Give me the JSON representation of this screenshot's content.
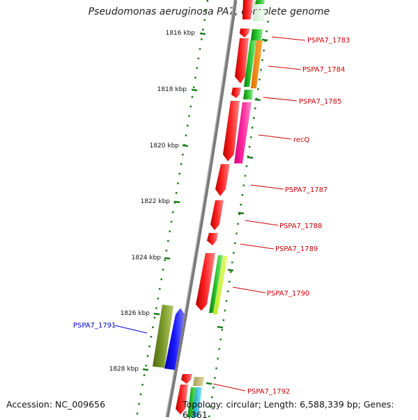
{
  "title": "Pseudomonas aeruginosa PA7, complete genome",
  "footer": {
    "accession": "Accession: NC_009656",
    "summary": "Topology: circular; Length: 6,588,339 bp; Genes: 6,361"
  },
  "scale_labels": [
    "1816 kbp",
    "1818 kbp",
    "1820 kbp",
    "1822 kbp",
    "1824 kbp",
    "1826 kbp",
    "1828 kbp"
  ],
  "gene_labels": [
    {
      "text": "PSPA7_1783",
      "color": "#cc0000"
    },
    {
      "text": "PSPA7_1784",
      "color": "#cc0000"
    },
    {
      "text": "PSPA7_1785",
      "color": "#cc0000"
    },
    {
      "text": "recQ",
      "color": "#cc0000"
    },
    {
      "text": "PSPA7_1787",
      "color": "#cc0000"
    },
    {
      "text": "PSPA7_1788",
      "color": "#cc0000"
    },
    {
      "text": "PSPA7_1789",
      "color": "#cc0000"
    },
    {
      "text": "PSPA7_1790",
      "color": "#cc0000"
    },
    {
      "text": "PSPA7_1791",
      "color": "#0000cc"
    },
    {
      "text": "PSPA7_1792",
      "color": "#cc0000"
    }
  ],
  "colors": {
    "forward_strand": "#ff1a1a",
    "reverse_strand": "#1a1aff",
    "backbone": "#888888",
    "ticks": "#1a7a1a"
  }
}
